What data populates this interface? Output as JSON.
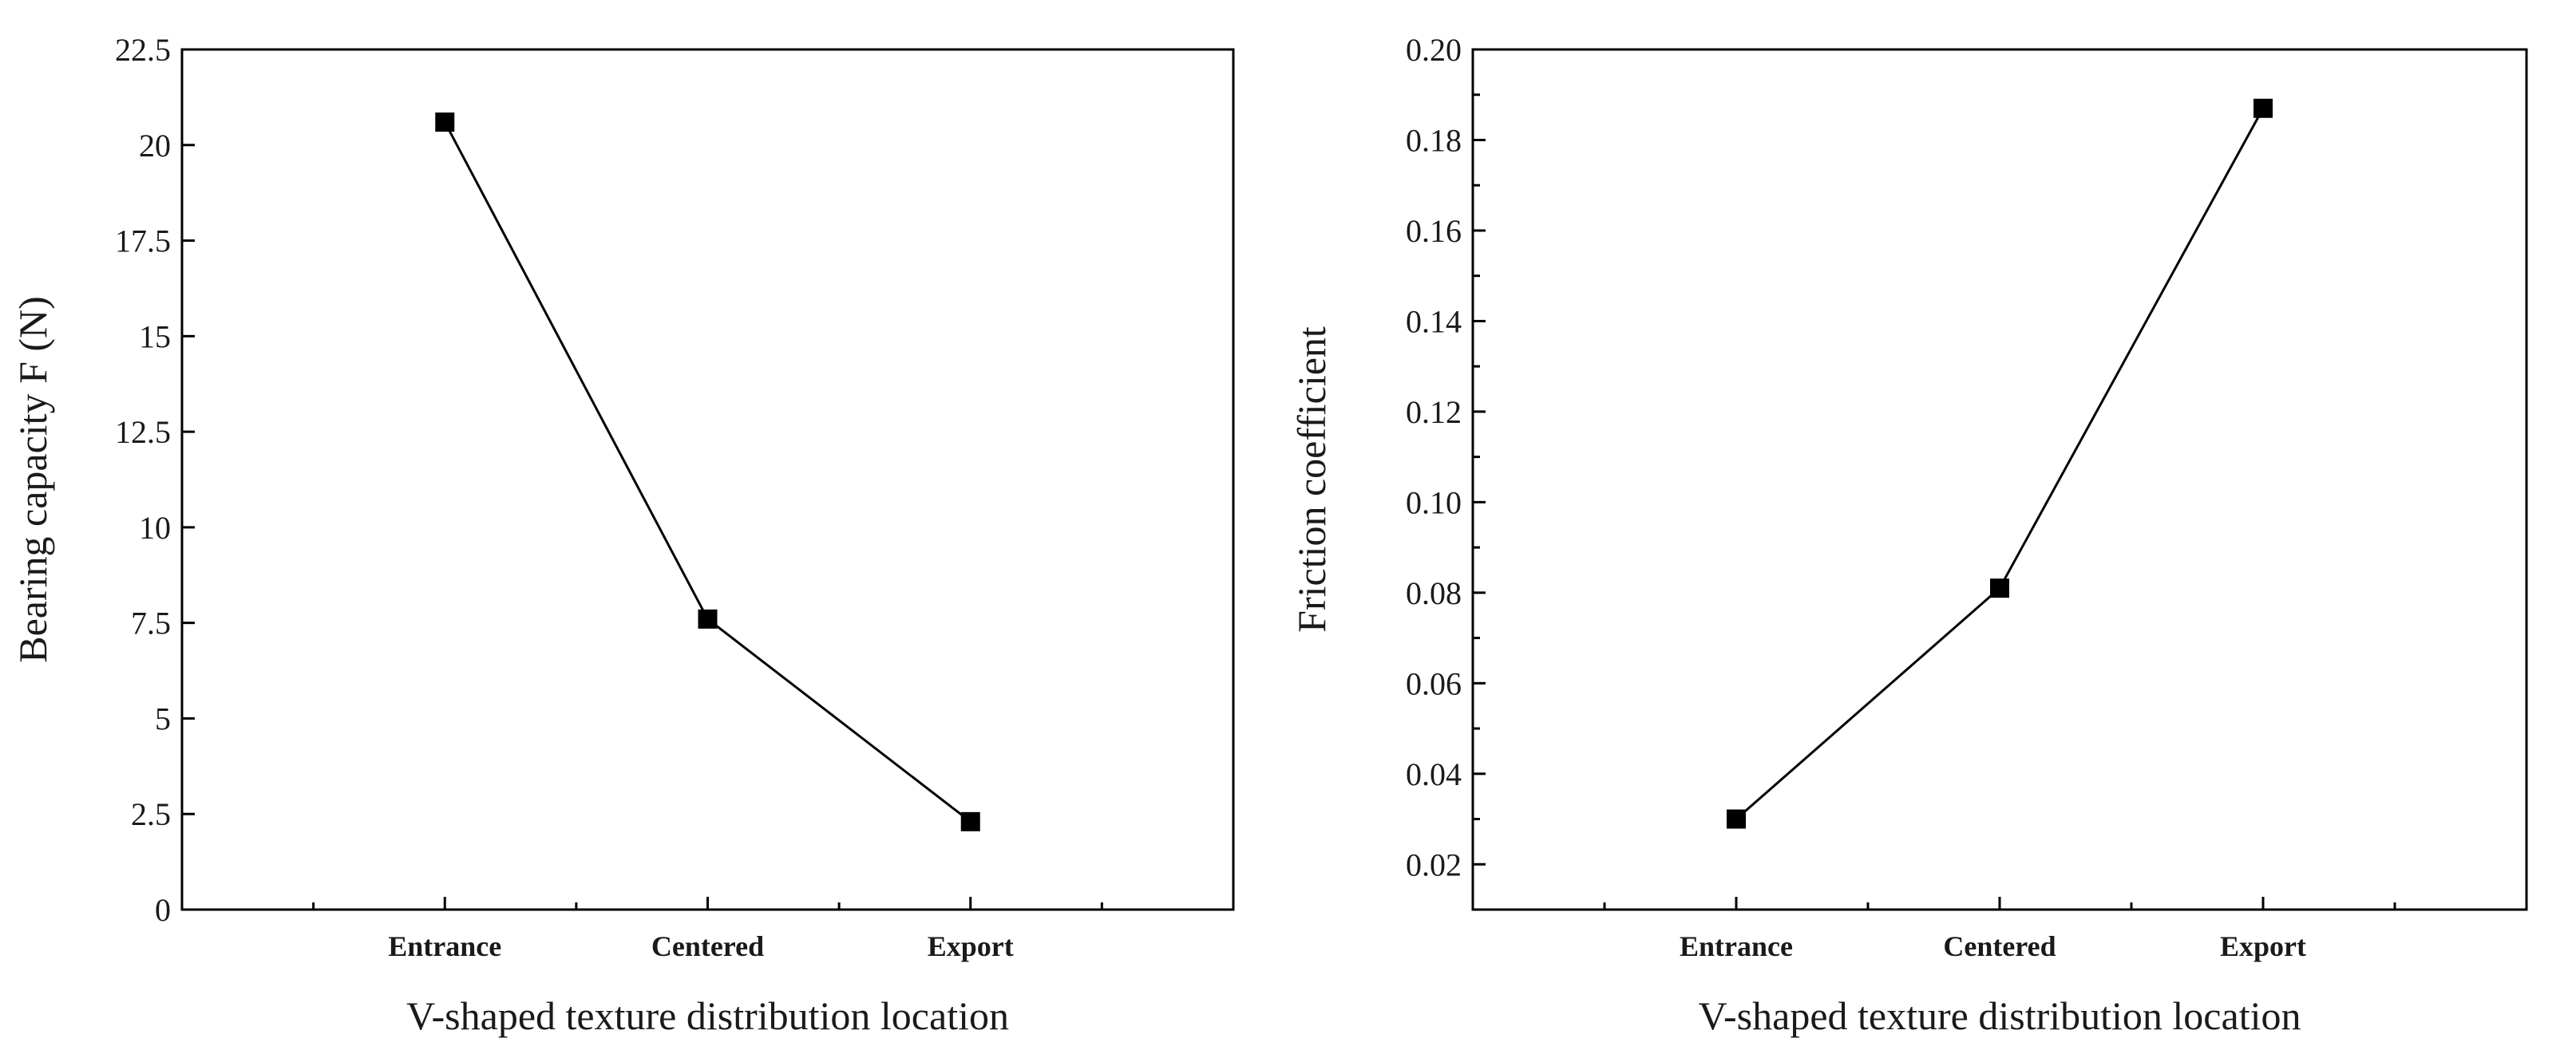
{
  "chart_data": [
    {
      "type": "line",
      "categories": [
        "Entrance",
        "Centered",
        "Export"
      ],
      "series": [
        {
          "values": [
            20.6,
            7.6,
            2.3
          ]
        }
      ],
      "xlabel": "V-shaped texture distribution location",
      "ylabel": "Bearing capacity F (N)",
      "ylim": [
        0,
        22.5
      ],
      "yticks": [
        "0",
        "2.5",
        "5",
        "7.5",
        "10",
        "12.5",
        "15",
        "17.5",
        "20",
        "22.5"
      ],
      "grid": false,
      "marker": "square",
      "color": "#000000"
    },
    {
      "type": "line",
      "categories": [
        "Entrance",
        "Centered",
        "Export"
      ],
      "series": [
        {
          "values": [
            0.03,
            0.081,
            0.187
          ]
        }
      ],
      "xlabel": "V-shaped texture distribution location",
      "ylabel": "Friction coefficient",
      "ylim": [
        0.01,
        0.2
      ],
      "yticks": [
        "0.02",
        "0.04",
        "0.06",
        "0.08",
        "0.10",
        "0.12",
        "0.14",
        "0.16",
        "0.18",
        "0.20"
      ],
      "grid": false,
      "marker": "square",
      "color": "#000000"
    }
  ]
}
